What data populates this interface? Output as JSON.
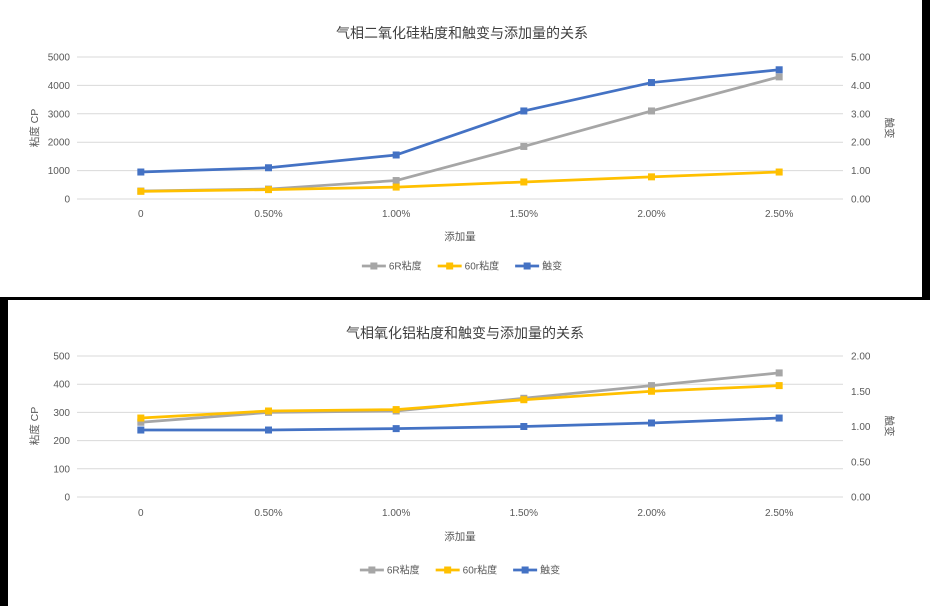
{
  "page": {
    "background_color": "#000000",
    "panel_color": "#ffffff"
  },
  "chart_data": [
    {
      "type": "line",
      "title": "气相二氧化硅粘度和触变与添加量的关系",
      "xlabel": "添加量",
      "grid": true,
      "legend_position": "bottom",
      "categories": [
        "0",
        "0.50%",
        "1.00%",
        "1.50%",
        "2.00%",
        "2.50%"
      ],
      "left_axis": {
        "label": "粘度 CP",
        "min": 0,
        "max": 5000,
        "ticks": [
          "0",
          "1000",
          "2000",
          "3000",
          "4000",
          "5000"
        ]
      },
      "right_axis": {
        "label": "触变",
        "min": 0,
        "max": 5,
        "ticks": [
          "0.00",
          "1.00",
          "2.00",
          "3.00",
          "4.00",
          "5.00"
        ]
      },
      "series": [
        {
          "name": "6R粘度",
          "axis": "left",
          "color": "#a6a6a6",
          "values": [
            280,
            350,
            650,
            1850,
            3100,
            4300
          ]
        },
        {
          "name": "60r粘度",
          "axis": "left",
          "color": "#ffc000",
          "values": [
            270,
            330,
            420,
            600,
            780,
            950
          ]
        },
        {
          "name": "触变",
          "axis": "right",
          "color": "#4472c4",
          "values": [
            0.95,
            1.1,
            1.55,
            3.1,
            4.1,
            4.55
          ]
        }
      ]
    },
    {
      "type": "line",
      "title": "气相氧化铝粘度和触变与添加量的关系",
      "xlabel": "添加量",
      "grid": true,
      "legend_position": "bottom",
      "categories": [
        "0",
        "0.50%",
        "1.00%",
        "1.50%",
        "2.00%",
        "2.50%"
      ],
      "left_axis": {
        "label": "粘度 CP",
        "min": 0,
        "max": 500,
        "ticks": [
          "0",
          "100",
          "200",
          "300",
          "400",
          "500"
        ]
      },
      "right_axis": {
        "label": "触变",
        "min": 0,
        "max": 2,
        "ticks": [
          "0.00",
          "0.50",
          "1.00",
          "1.50",
          "2.00"
        ]
      },
      "series": [
        {
          "name": "6R粘度",
          "axis": "left",
          "color": "#a6a6a6",
          "values": [
            265,
            300,
            305,
            350,
            395,
            440
          ]
        },
        {
          "name": "60r粘度",
          "axis": "left",
          "color": "#ffc000",
          "values": [
            280,
            305,
            310,
            345,
            375,
            395
          ]
        },
        {
          "name": "触变",
          "axis": "right",
          "color": "#4472c4",
          "values": [
            0.95,
            0.95,
            0.97,
            1.0,
            1.05,
            1.12
          ]
        }
      ]
    }
  ]
}
